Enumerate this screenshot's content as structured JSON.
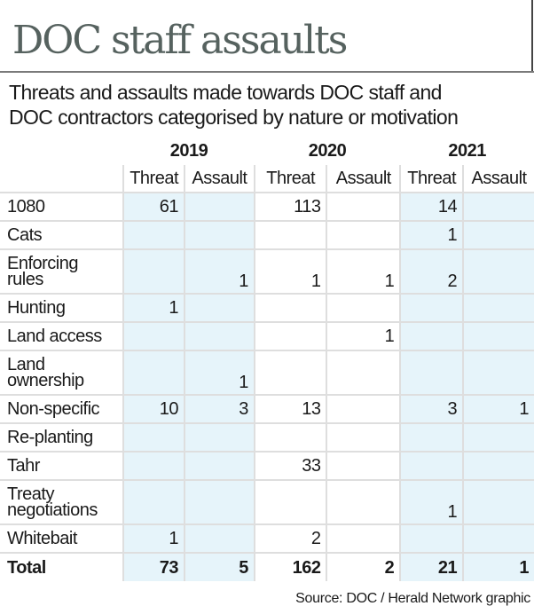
{
  "title": "DOC staff assaults",
  "subtitle_lines": [
    "Threats and assaults made towards DOC staff and",
    "DOC contractors categorised by nature or motivation"
  ],
  "source": "Source: DOC / Herald Network graphic",
  "colors": {
    "title": "#56625f",
    "shade": "#e6f4fa"
  },
  "chart_data": {
    "type": "table",
    "years": [
      "2019",
      "2020",
      "2021"
    ],
    "subcolumns": [
      "Threat",
      "Assault",
      "Threat",
      "Assault",
      "Threat",
      "Assault"
    ],
    "rows": [
      {
        "label": [
          "1080"
        ],
        "values": [
          "61",
          "",
          "113",
          "",
          "14",
          ""
        ]
      },
      {
        "label": [
          "Cats"
        ],
        "values": [
          "",
          "",
          "",
          "",
          "1",
          ""
        ]
      },
      {
        "label": [
          "Enforcing",
          "rules"
        ],
        "values": [
          "",
          "1",
          "1",
          "1",
          "2",
          ""
        ]
      },
      {
        "label": [
          "Hunting"
        ],
        "values": [
          "1",
          "",
          "",
          "",
          "",
          ""
        ]
      },
      {
        "label": [
          "Land access"
        ],
        "values": [
          "",
          "",
          "",
          "1",
          "",
          ""
        ]
      },
      {
        "label": [
          "Land",
          "ownership"
        ],
        "values": [
          "",
          "1",
          "",
          "",
          "",
          ""
        ]
      },
      {
        "label": [
          "Non-specific"
        ],
        "values": [
          "10",
          "3",
          "13",
          "",
          "3",
          "1"
        ]
      },
      {
        "label": [
          "Re-planting"
        ],
        "values": [
          "",
          "",
          "",
          "",
          "",
          ""
        ]
      },
      {
        "label": [
          "Tahr"
        ],
        "values": [
          "",
          "",
          "33",
          "",
          "",
          ""
        ]
      },
      {
        "label": [
          "Treaty",
          "negotiations"
        ],
        "values": [
          "",
          "",
          "",
          "",
          "1",
          ""
        ]
      },
      {
        "label": [
          "Whitebait"
        ],
        "values": [
          "1",
          "",
          "2",
          "",
          "",
          ""
        ]
      }
    ],
    "total": {
      "label": "Total",
      "values": [
        "73",
        "5",
        "162",
        "2",
        "21",
        "1"
      ]
    }
  }
}
